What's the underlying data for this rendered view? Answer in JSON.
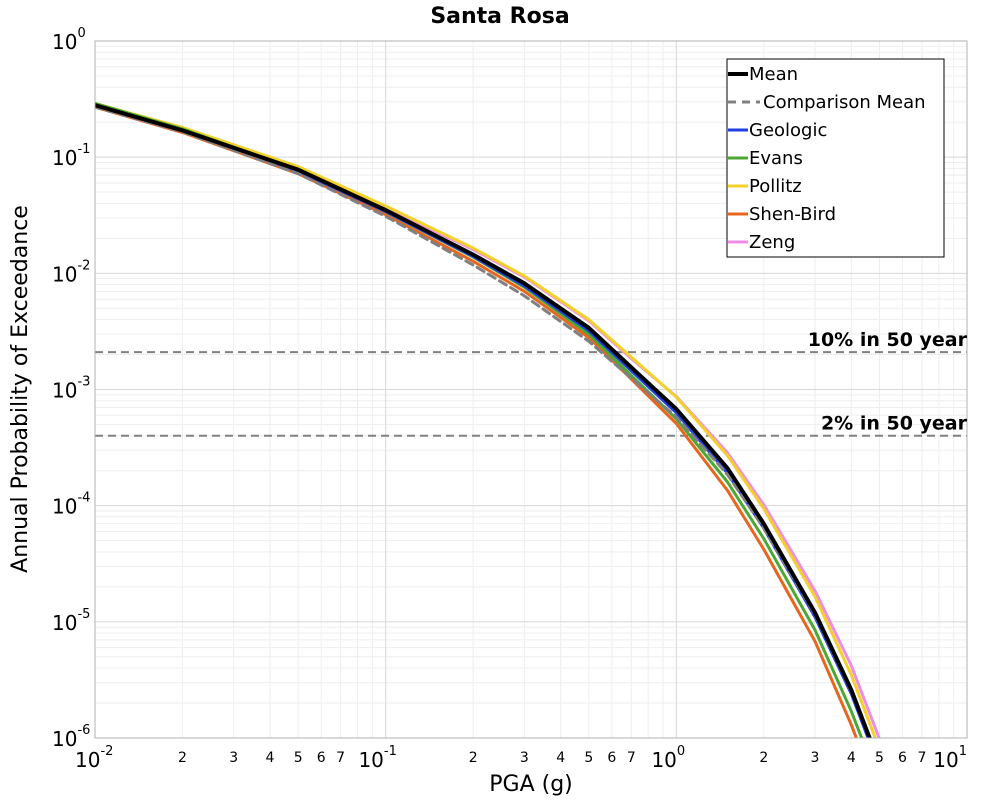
{
  "chart_data": {
    "type": "line",
    "title": "Santa Rosa",
    "xlabel": "PGA (g)",
    "ylabel": "Annual Probability of Exceedance",
    "xscale": "log",
    "yscale": "log",
    "xlim": [
      0.01,
      10
    ],
    "ylim": [
      1e-06,
      1
    ],
    "grid": true,
    "legend_position": "top-right",
    "x_ticks": [
      {
        "base": "10",
        "exp": "-2"
      },
      {
        "base": "10",
        "exp": "-1"
      },
      {
        "base": "10",
        "exp": "0"
      },
      {
        "base": "10",
        "exp": "1"
      }
    ],
    "y_ticks": [
      {
        "base": "10",
        "exp": "-6"
      },
      {
        "base": "10",
        "exp": "-5"
      },
      {
        "base": "10",
        "exp": "-4"
      },
      {
        "base": "10",
        "exp": "-3"
      },
      {
        "base": "10",
        "exp": "-2"
      },
      {
        "base": "10",
        "exp": "-1"
      },
      {
        "base": "10",
        "exp": "0"
      }
    ],
    "x_minor_tick_labels": [
      "2",
      "3",
      "4",
      "5",
      "6",
      "7"
    ],
    "x": [
      0.01,
      0.02,
      0.05,
      0.1,
      0.2,
      0.3,
      0.5,
      0.7,
      1.0,
      1.5,
      2.0,
      3.0,
      4.0,
      5.0
    ],
    "series": [
      {
        "name": "Mean",
        "color": "#000000",
        "dash": "solid",
        "width": 4,
        "values": [
          0.28,
          0.17,
          0.078,
          0.035,
          0.0145,
          0.0082,
          0.0034,
          0.00155,
          0.00068,
          0.00021,
          7e-05,
          1.2e-05,
          2.6e-06,
          6e-07
        ]
      },
      {
        "name": "Comparison Mean",
        "color": "#808080",
        "dash": "dashed",
        "width": 3,
        "values": [
          0.27,
          0.165,
          0.072,
          0.031,
          0.0118,
          0.0064,
          0.0026,
          0.00125,
          0.00058,
          0.000185,
          6.4e-05,
          1.15e-05,
          2.5e-06,
          5.8e-07
        ]
      },
      {
        "name": "Geologic",
        "color": "#1f3fe0",
        "dash": "solid",
        "width": 3,
        "values": [
          0.28,
          0.17,
          0.076,
          0.034,
          0.014,
          0.0078,
          0.0032,
          0.00145,
          0.00063,
          0.00019,
          6.4e-05,
          1.1e-05,
          2.4e-06,
          5.5e-07
        ]
      },
      {
        "name": "Evans",
        "color": "#4ca832",
        "dash": "solid",
        "width": 3,
        "values": [
          0.29,
          0.175,
          0.077,
          0.034,
          0.0138,
          0.0076,
          0.003,
          0.00132,
          0.00056,
          0.00016,
          5.2e-05,
          8.5e-06,
          1.7e-06,
          4e-07
        ]
      },
      {
        "name": "Pollitz",
        "color": "#f2d22a",
        "dash": "solid",
        "width": 3,
        "values": [
          0.29,
          0.18,
          0.083,
          0.038,
          0.0165,
          0.0095,
          0.004,
          0.0019,
          0.00086,
          0.00027,
          9.4e-05,
          1.65e-05,
          3.5e-06,
          8e-07
        ]
      },
      {
        "name": "Shen-Bird",
        "color": "#e8651e",
        "dash": "solid",
        "width": 3,
        "values": [
          0.27,
          0.163,
          0.072,
          0.032,
          0.0127,
          0.007,
          0.0028,
          0.00123,
          0.00051,
          0.000135,
          4.2e-05,
          6.8e-06,
          1.3e-06,
          3e-07
        ]
      },
      {
        "name": "Zeng",
        "color": "#f08ce8",
        "dash": "solid",
        "width": 3,
        "values": [
          0.28,
          0.175,
          0.08,
          0.037,
          0.016,
          0.0093,
          0.0039,
          0.00185,
          0.00087,
          0.000285,
          0.000102,
          1.85e-05,
          4.2e-06,
          9.8e-07
        ]
      }
    ],
    "reference_lines": [
      {
        "label": "10% in 50 year",
        "y": 0.0021
      },
      {
        "label": "2% in 50 year",
        "y": 0.0004
      }
    ]
  }
}
